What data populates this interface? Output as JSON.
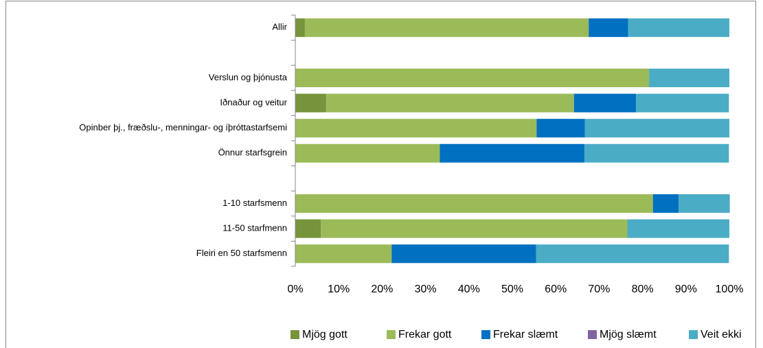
{
  "chart_data": {
    "type": "stacked_barh",
    "categories": [
      "Allir",
      null,
      "Verslun og þjónusta",
      "Iðnaður og veitur",
      "Opinber þj., fræðslu-, menningar- og íþróttastarfsemi",
      "Önnur starfsgrein",
      null,
      "1-10 starfsmenn",
      "11-50 starfmenn",
      "Fleiri en 50 starfsmenn"
    ],
    "series": [
      {
        "name": "Mjög gott",
        "color": "#77933c",
        "values": [
          2.2,
          null,
          0,
          7.1,
          0,
          0,
          null,
          0,
          5.9,
          0
        ]
      },
      {
        "name": "Frekar gott",
        "color": "#9bbb59",
        "values": [
          65.4,
          null,
          81.5,
          57.1,
          55.6,
          33.3,
          null,
          82.4,
          70.6,
          22.2
        ]
      },
      {
        "name": "Frekar slæmt",
        "color": "#0070c0",
        "values": [
          9.1,
          null,
          0,
          14.3,
          11.1,
          33.3,
          null,
          5.9,
          0,
          33.3
        ]
      },
      {
        "name": "Mjög slæmt",
        "color": "#8064a2",
        "values": [
          0,
          null,
          0,
          0,
          0,
          0,
          null,
          0,
          0,
          0
        ]
      },
      {
        "name": "Veit ekki",
        "color": "#4bacc6",
        "values": [
          23.3,
          null,
          18.5,
          21.4,
          33.3,
          33.3,
          null,
          11.8,
          23.5,
          44.4
        ]
      }
    ],
    "xlim": [
      0,
      100
    ],
    "xticks": [
      {
        "value": 0,
        "label": "0%"
      },
      {
        "value": 10,
        "label": "10%"
      },
      {
        "value": 20,
        "label": "20%"
      },
      {
        "value": 30,
        "label": "30%"
      },
      {
        "value": 40,
        "label": "40%"
      },
      {
        "value": 50,
        "label": "50%"
      },
      {
        "value": 60,
        "label": "60%"
      },
      {
        "value": 70,
        "label": "70%"
      },
      {
        "value": 80,
        "label": "80%"
      },
      {
        "value": 90,
        "label": "90%"
      },
      {
        "value": 100,
        "label": "100%"
      }
    ],
    "grid": false,
    "legend": "bottom"
  }
}
